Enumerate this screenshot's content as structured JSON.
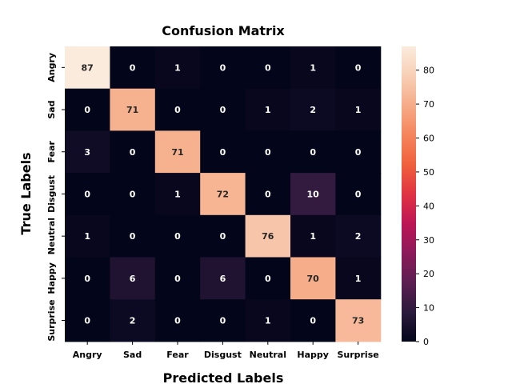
{
  "chart_data": {
    "type": "heatmap",
    "title": "Confusion Matrix",
    "xlabel": "Predicted Labels",
    "ylabel": "True Labels",
    "x_categories": [
      "Angry",
      "Sad",
      "Fear",
      "Disgust",
      "Neutral",
      "Happy",
      "Surprise"
    ],
    "y_categories": [
      "Angry",
      "Sad",
      "Fear",
      "Disgust",
      "Neutral",
      "Happy",
      "Surprise"
    ],
    "values": [
      [
        87,
        0,
        1,
        0,
        0,
        1,
        0
      ],
      [
        0,
        71,
        0,
        0,
        1,
        2,
        1
      ],
      [
        3,
        0,
        71,
        0,
        0,
        0,
        0
      ],
      [
        0,
        0,
        1,
        72,
        0,
        10,
        0
      ],
      [
        1,
        0,
        0,
        0,
        76,
        1,
        2
      ],
      [
        0,
        6,
        0,
        6,
        0,
        70,
        1
      ],
      [
        0,
        2,
        0,
        0,
        1,
        0,
        73
      ]
    ],
    "colorbar": {
      "min": 0,
      "max": 87,
      "ticks": [
        0,
        10,
        20,
        30,
        40,
        50,
        60,
        70,
        80
      ],
      "colormap": "rocket"
    },
    "colormap_stops": [
      "#03051a",
      "#2b1a3c",
      "#5c1e51",
      "#8c1a5a",
      "#bd1655",
      "#e13342",
      "#f0603c",
      "#f5855c",
      "#f6ab88",
      "#f8cfb5",
      "#faebdd"
    ]
  }
}
